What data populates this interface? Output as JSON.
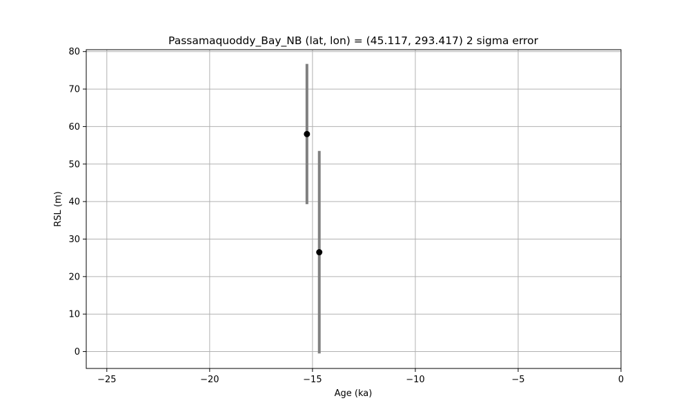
{
  "chart_data": {
    "type": "scatter",
    "title": "Passamaquoddy_Bay_NB (lat, lon) = (45.117, 293.417)  2 sigma error",
    "xlabel": "Age (ka)",
    "ylabel": "RSL (m)",
    "xlim": [
      -26,
      0
    ],
    "ylim": [
      -4.5,
      80.5
    ],
    "x_ticks": [
      -25,
      -20,
      -15,
      -10,
      -5,
      0
    ],
    "y_ticks": [
      0,
      10,
      20,
      30,
      40,
      50,
      60,
      70,
      80
    ],
    "x_tick_labels": [
      "−25",
      "−20",
      "−15",
      "−10",
      "−5",
      "0"
    ],
    "y_tick_labels": [
      "0",
      "10",
      "20",
      "30",
      "40",
      "50",
      "60",
      "70",
      "80"
    ],
    "grid": true,
    "legend": "none",
    "points": [
      {
        "x": -15.27,
        "y": 58.0,
        "y_low": 39.3,
        "y_high": 76.7
      },
      {
        "x": -14.67,
        "y": 26.5,
        "y_low": -0.5,
        "y_high": 53.5
      }
    ],
    "colors": {
      "marker": "#000000",
      "errorbar": "#808080",
      "grid": "#b0b0b0"
    }
  }
}
